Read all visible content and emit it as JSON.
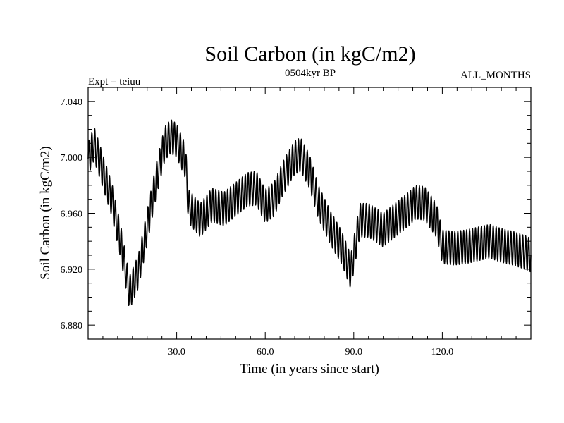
{
  "chart_data": {
    "type": "line",
    "title": "Soil Carbon (in kgC/m2)",
    "subtitle_left": "Expt = teiuu",
    "subtitle_center": "0504kyr BP",
    "subtitle_right": "ALL_MONTHS",
    "xlabel": "Time (in years since start)",
    "ylabel": "Soil Carbon (in kgC/m2)",
    "xlim": [
      0,
      150
    ],
    "ylim": [
      6.87,
      7.05
    ],
    "x_ticks": [
      30,
      60,
      90,
      120
    ],
    "x_tick_labels": [
      "30.0",
      "60.0",
      "90.0",
      "120.0"
    ],
    "y_ticks": [
      6.88,
      6.92,
      6.96,
      7.0,
      7.04
    ],
    "y_tick_labels": [
      "6.880",
      "6.920",
      "6.960",
      "7.000",
      "7.040"
    ],
    "series": [
      {
        "name": "Soil Carbon",
        "color": "#000000",
        "seasonal_amplitude": 0.012,
        "annual_mean_x": [
          0,
          2,
          5,
          8,
          11,
          14,
          17,
          20,
          23,
          26,
          28,
          30,
          33,
          34,
          38,
          42,
          46,
          50,
          54,
          57,
          60,
          63,
          66,
          70,
          72,
          75,
          78,
          82,
          86,
          89,
          92,
          95,
          100,
          104,
          108,
          111,
          114,
          118,
          120,
          124,
          128,
          132,
          136,
          140,
          144,
          148,
          150
        ],
        "annual_mean_y": [
          6.999,
          7.01,
          6.99,
          6.97,
          6.94,
          6.903,
          6.918,
          6.95,
          6.983,
          7.01,
          7.015,
          7.012,
          6.997,
          6.965,
          6.955,
          6.966,
          6.963,
          6.97,
          6.977,
          6.978,
          6.965,
          6.97,
          6.985,
          7.0,
          7.002,
          6.99,
          6.968,
          6.95,
          6.935,
          6.918,
          6.955,
          6.955,
          6.948,
          6.955,
          6.962,
          6.968,
          6.967,
          6.955,
          6.936,
          6.935,
          6.936,
          6.938,
          6.94,
          6.937,
          6.935,
          6.932,
          6.93
        ]
      }
    ]
  }
}
